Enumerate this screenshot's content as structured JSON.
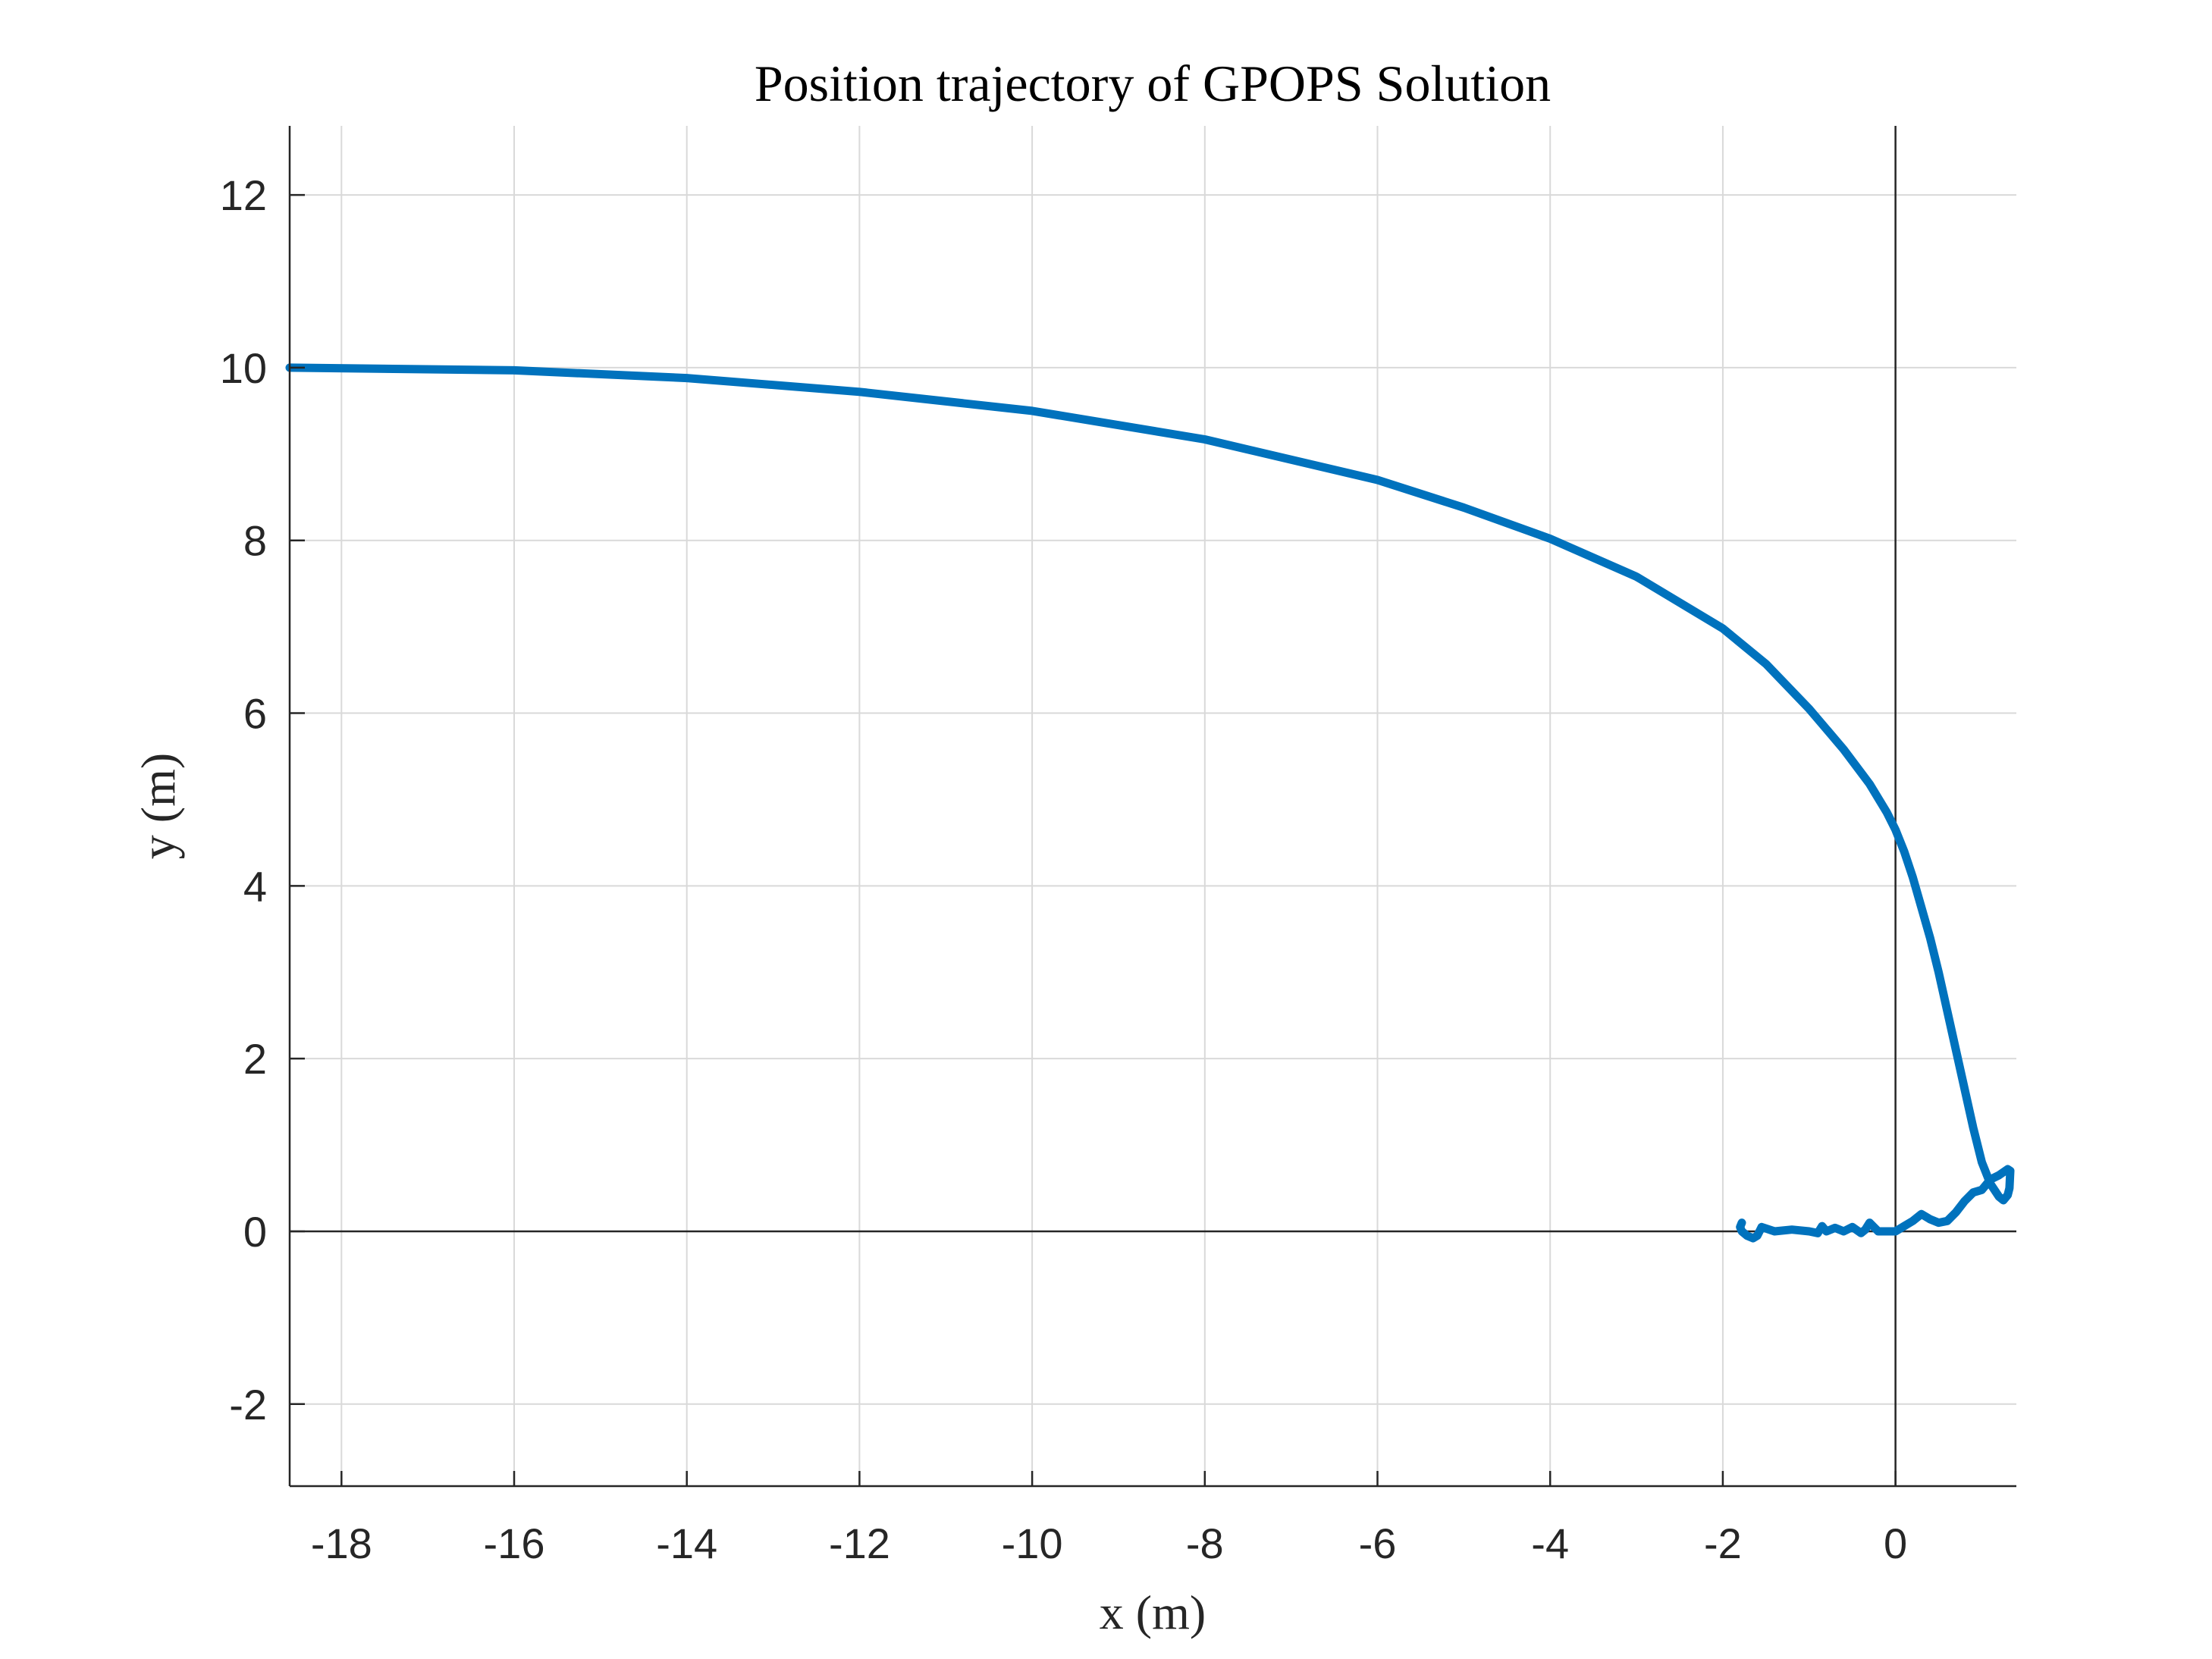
{
  "chart_data": {
    "type": "line",
    "title": "Position trajectory of GPOPS Solution",
    "xlabel": "x (m)",
    "ylabel": "y (m)",
    "xlim": [
      -18.6,
      1.4
    ],
    "ylim": [
      -2.95,
      12.8
    ],
    "xticks": [
      -18,
      -16,
      -14,
      -12,
      -10,
      -8,
      -6,
      -4,
      -2,
      0
    ],
    "yticks": [
      -2,
      0,
      2,
      4,
      6,
      8,
      10,
      12
    ],
    "xtick_labels": [
      "-18",
      "-16",
      "-14",
      "-12",
      "-10",
      "-8",
      "-6",
      "-4",
      "-2",
      "0"
    ],
    "ytick_labels": [
      "-2",
      "0",
      "2",
      "4",
      "6",
      "8",
      "10",
      "12"
    ],
    "grid": true,
    "zero_lines": true,
    "series": [
      {
        "color": "#0072BD",
        "x": [
          -18.6,
          -16,
          -14,
          -12,
          -10,
          -8,
          -6,
          -5,
          -4,
          -3,
          -2,
          -1.5,
          -1,
          -0.6,
          -0.3,
          -0.1,
          0,
          0.1,
          0.2,
          0.3,
          0.4,
          0.5,
          0.6,
          0.7,
          0.8,
          0.9,
          1.0,
          1.1,
          1.2,
          1.25,
          1.3,
          1.32,
          1.33,
          1.3,
          1.2,
          1.1,
          1.0,
          0.9,
          0.8,
          0.7,
          0.6,
          0.5,
          0.4,
          0.3,
          0.2,
          0.1,
          0,
          -0.2,
          -0.3,
          -0.35,
          -0.4,
          -0.5,
          -0.6,
          -0.7,
          -0.8,
          -0.85,
          -0.9,
          -1.0,
          -1.2,
          -1.4,
          -1.55,
          -1.6,
          -1.65,
          -1.72,
          -1.78,
          -1.8,
          -1.78
        ],
        "y": [
          10.0,
          9.97,
          9.88,
          9.72,
          9.5,
          9.17,
          8.7,
          8.38,
          8.02,
          7.58,
          6.98,
          6.57,
          6.05,
          5.58,
          5.18,
          4.85,
          4.65,
          4.4,
          4.1,
          3.75,
          3.4,
          3.0,
          2.55,
          2.1,
          1.65,
          1.2,
          0.8,
          0.55,
          0.4,
          0.36,
          0.42,
          0.5,
          0.7,
          0.72,
          0.65,
          0.6,
          0.48,
          0.45,
          0.35,
          0.22,
          0.12,
          0.1,
          0.14,
          0.2,
          0.12,
          0.06,
          0.0,
          0.0,
          0.1,
          0.02,
          -0.02,
          0.05,
          0.0,
          0.04,
          0.0,
          0.06,
          -0.02,
          0.0,
          0.02,
          0.0,
          0.05,
          -0.05,
          -0.08,
          -0.05,
          0.0,
          0.05,
          0.1
        ]
      }
    ]
  }
}
